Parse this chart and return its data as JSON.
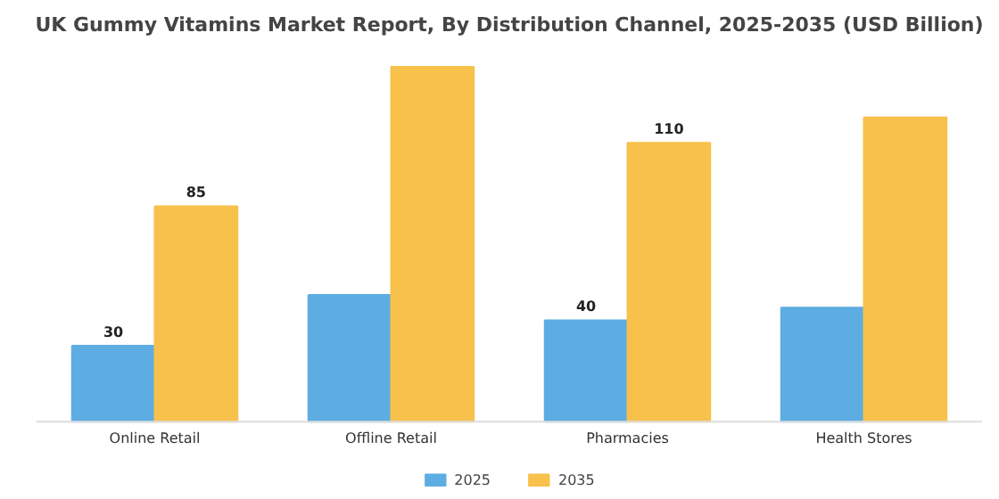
{
  "chart_data": {
    "type": "bar",
    "title": "UK Gummy Vitamins Market Report, By Distribution Channel, 2025-2035 (USD Billion)",
    "categories": [
      "Online Retail",
      "Offline Retail",
      "Pharmacies",
      "Health Stores"
    ],
    "series": [
      {
        "name": "2025",
        "color": "#5dade2",
        "values": [
          30,
          50,
          40,
          45
        ],
        "value_labels": [
          "30",
          null,
          "40",
          null
        ]
      },
      {
        "name": "2035",
        "color": "#f7c14c",
        "values": [
          85,
          140,
          110,
          120
        ],
        "value_labels": [
          "85",
          null,
          "110",
          null
        ]
      }
    ],
    "legend": "bottom"
  }
}
